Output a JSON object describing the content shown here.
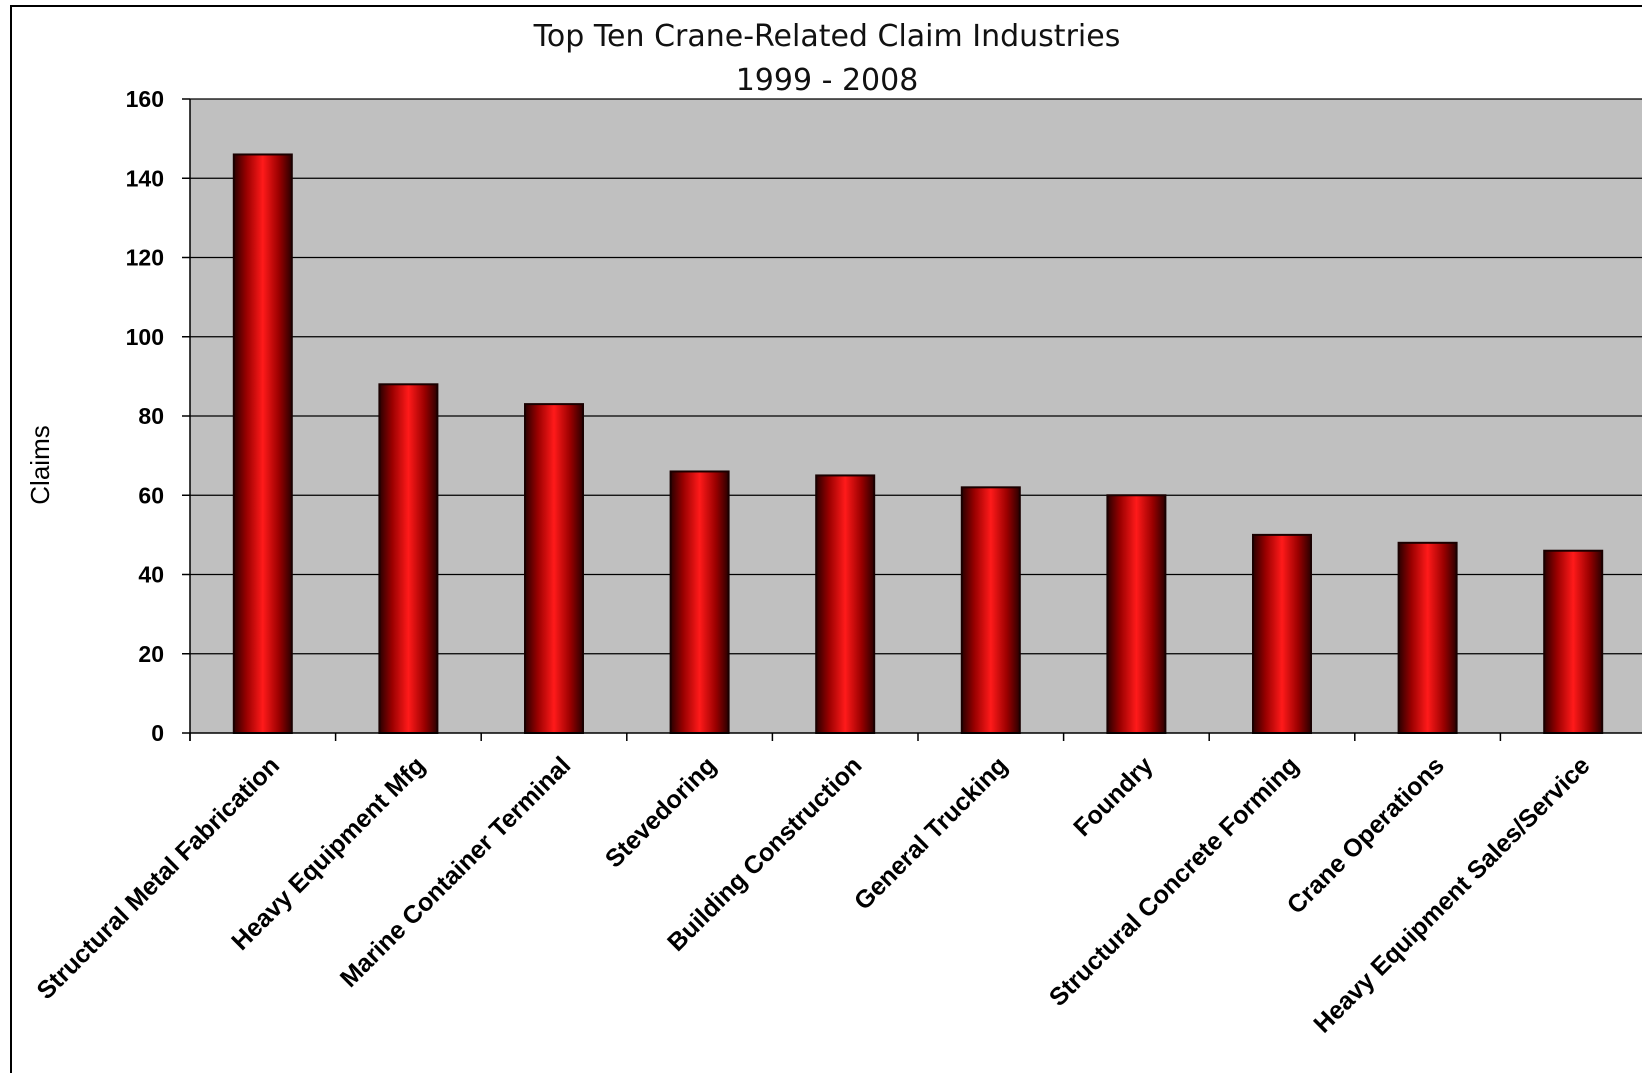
{
  "chart_data": {
    "type": "bar",
    "title": "Top Ten Crane-Related Claim Industries",
    "subtitle": "1999 - 2008",
    "xlabel": "",
    "ylabel": "Claims",
    "ylim": [
      0,
      160
    ],
    "yticks": [
      "0",
      "20",
      "40",
      "60",
      "80",
      "100",
      "120",
      "140",
      "160"
    ],
    "grid": true,
    "categories": [
      "Structural Metal Fabrication",
      "Heavy Equipment Mfg",
      "Marine Container Terminal",
      "Stevedoring",
      "Building Construction",
      "General Trucking",
      "Foundry",
      "Structural Concrete Forming",
      "Crane Operations",
      "Heavy Equipment Sales/Service"
    ],
    "values": [
      146,
      88,
      83,
      66,
      65,
      62,
      60,
      50,
      48,
      46
    ],
    "colors": {
      "plot_background": "#c0c0c0",
      "bar_edge": "#1a0000",
      "bar_center": "#ff1a1a",
      "bar_dark": "#3a0000",
      "gridline": "#000000"
    }
  }
}
